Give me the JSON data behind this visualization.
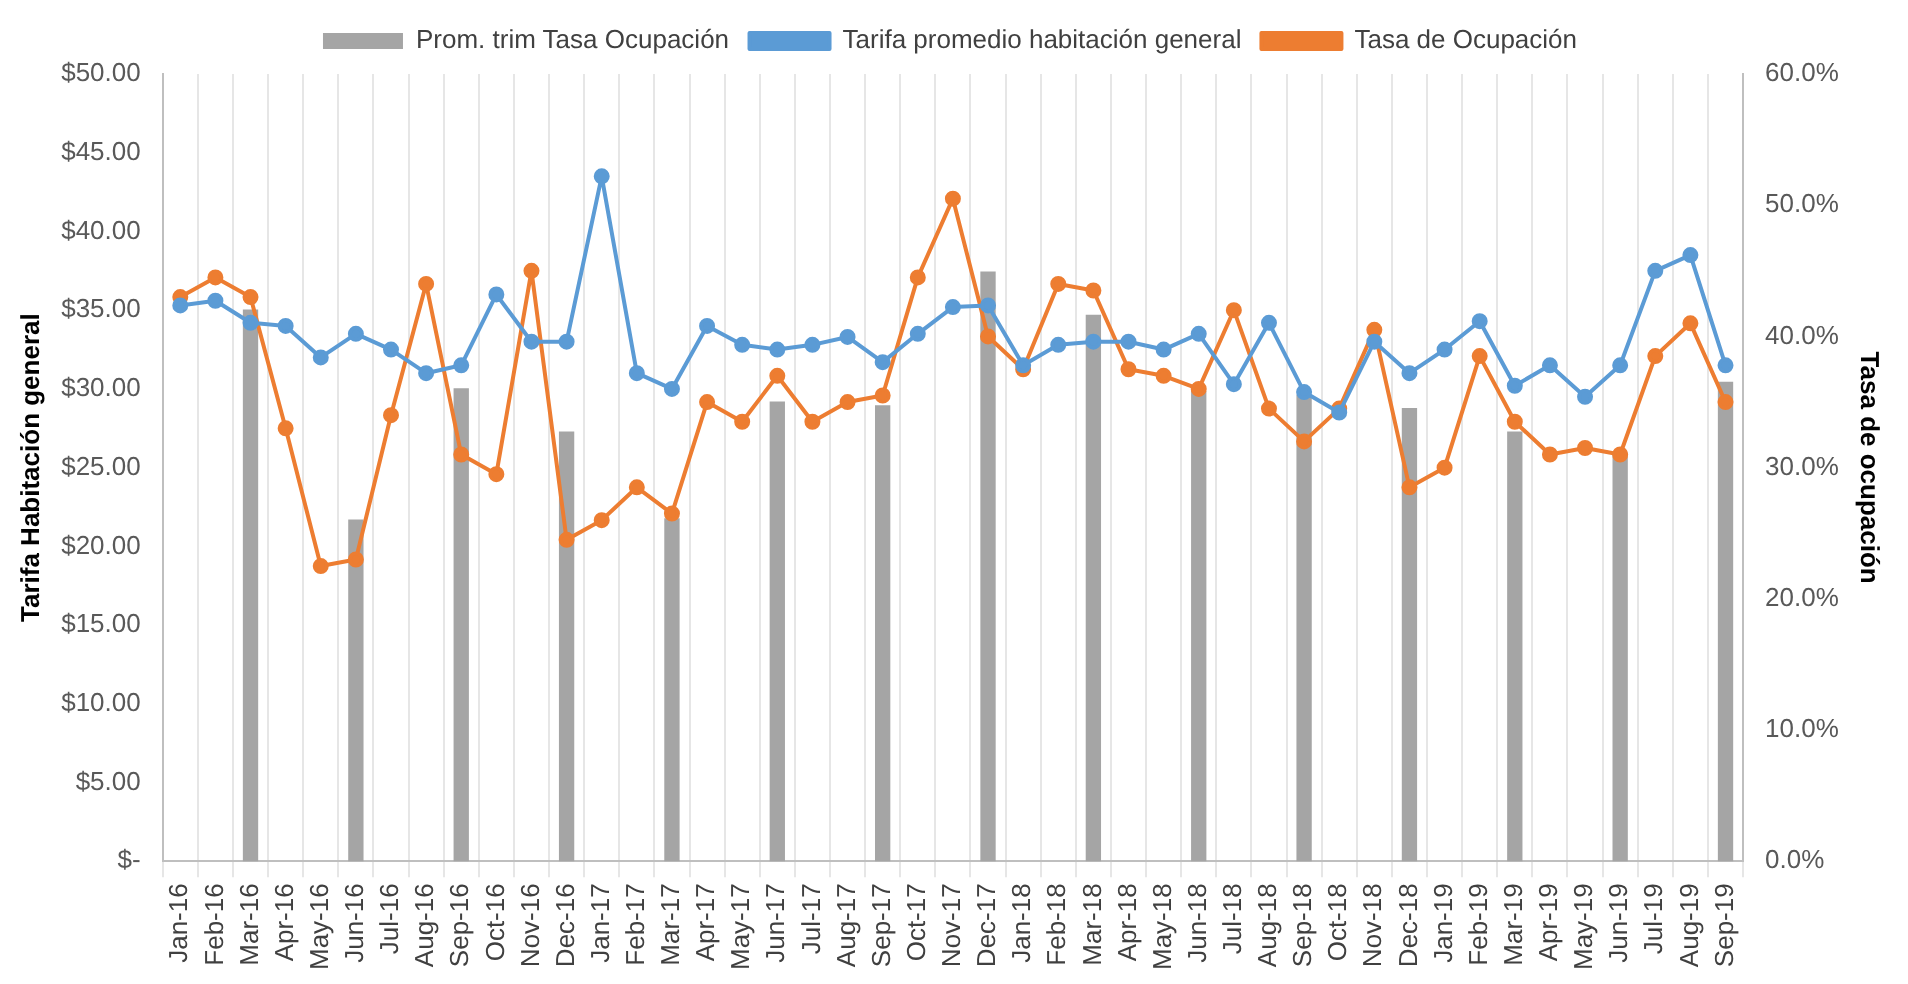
{
  "chart_data": {
    "type": "line",
    "categories": [
      "Jan-16",
      "Feb-16",
      "Mar-16",
      "Apr-16",
      "May-16",
      "Jun-16",
      "Jul-16",
      "Aug-16",
      "Sep-16",
      "Oct-16",
      "Nov-16",
      "Dec-16",
      "Jan-17",
      "Feb-17",
      "Mar-17",
      "Apr-17",
      "May-17",
      "Jun-17",
      "Jul-17",
      "Aug-17",
      "Sep-17",
      "Oct-17",
      "Nov-17",
      "Dec-17",
      "Jan-18",
      "Feb-18",
      "Mar-18",
      "Apr-18",
      "May-18",
      "Jun-18",
      "Jul-18",
      "Aug-18",
      "Sep-18",
      "Oct-18",
      "Nov-18",
      "Dec-18",
      "Jan-19",
      "Feb-19",
      "Mar-19",
      "Apr-19",
      "May-19",
      "Jun-19",
      "Jul-19",
      "Aug-19",
      "Sep-19"
    ],
    "series": [
      {
        "name": "Prom. trim Tasa Ocupación",
        "type": "bar",
        "axis": "y2",
        "color": "#a5a5a5",
        "values": [
          null,
          null,
          42,
          null,
          null,
          26,
          null,
          null,
          36,
          null,
          null,
          32.7,
          null,
          null,
          26.1,
          null,
          null,
          35,
          null,
          null,
          34.7,
          null,
          null,
          44.9,
          null,
          null,
          41.6,
          null,
          null,
          35.8,
          null,
          null,
          35.5,
          null,
          null,
          34.5,
          null,
          null,
          32.7,
          null,
          null,
          31.1,
          null,
          null,
          36.5
        ]
      },
      {
        "name": "Tarifa promedio habitación general",
        "color": "#5b9bd5",
        "values": [
          35.3,
          35.6,
          34.2,
          34,
          32,
          33.5,
          32.5,
          31,
          31.5,
          36,
          33,
          33,
          43.5,
          31,
          30,
          34,
          32.8,
          32.5,
          32.8,
          33.3,
          31.7,
          33.5,
          35.2,
          35.3,
          31.5,
          32.8,
          33,
          33,
          32.5,
          33.5,
          30.3,
          34.2,
          29.8,
          28.5,
          33,
          31,
          32.5,
          34.3,
          30.2,
          31.5,
          29.5,
          31.5,
          37.5,
          38.5,
          31.5
        ]
      },
      {
        "name": "Tasa de Ocupación",
        "axis": "y2",
        "color": "#ed7d31",
        "values": [
          43,
          44.5,
          43,
          33,
          22.5,
          23,
          34,
          44,
          31,
          29.5,
          45,
          24.5,
          26,
          28.5,
          26.5,
          35,
          33.5,
          37,
          33.5,
          35,
          35.5,
          44.5,
          50.5,
          40,
          37.5,
          44,
          43.5,
          37.5,
          37,
          36,
          42,
          34.5,
          32,
          34.5,
          40.5,
          28.5,
          30,
          38.5,
          33.5,
          31,
          31.5,
          31,
          38.5,
          41,
          35
        ]
      }
    ],
    "ylabel": "Tarifa Habitación general",
    "y2label": "Tasa de ocupación",
    "ylim": [
      0,
      50
    ],
    "yticks": [
      {
        "value": 0,
        "label": "$-"
      },
      {
        "value": 5,
        "label": "$5.00"
      },
      {
        "value": 10,
        "label": "$10.00"
      },
      {
        "value": 15,
        "label": "$15.00"
      },
      {
        "value": 20,
        "label": "$20.00"
      },
      {
        "value": 25,
        "label": "$25.00"
      },
      {
        "value": 30,
        "label": "$30.00"
      },
      {
        "value": 35,
        "label": "$35.00"
      },
      {
        "value": 40,
        "label": "$40.00"
      },
      {
        "value": 45,
        "label": "$45.00"
      },
      {
        "value": 50,
        "label": "$50.00"
      }
    ],
    "y2lim": [
      0,
      60
    ],
    "y2ticks": [
      {
        "value": 0,
        "label": "0.0%"
      },
      {
        "value": 10,
        "label": "10.0%"
      },
      {
        "value": 20,
        "label": "20.0%"
      },
      {
        "value": 30,
        "label": "30.0%"
      },
      {
        "value": 40,
        "label": "40.0%"
      },
      {
        "value": 50,
        "label": "50.0%"
      },
      {
        "value": 60,
        "label": "60.0%"
      }
    ],
    "grid": "x",
    "legend": "top",
    "marker": "circle"
  }
}
